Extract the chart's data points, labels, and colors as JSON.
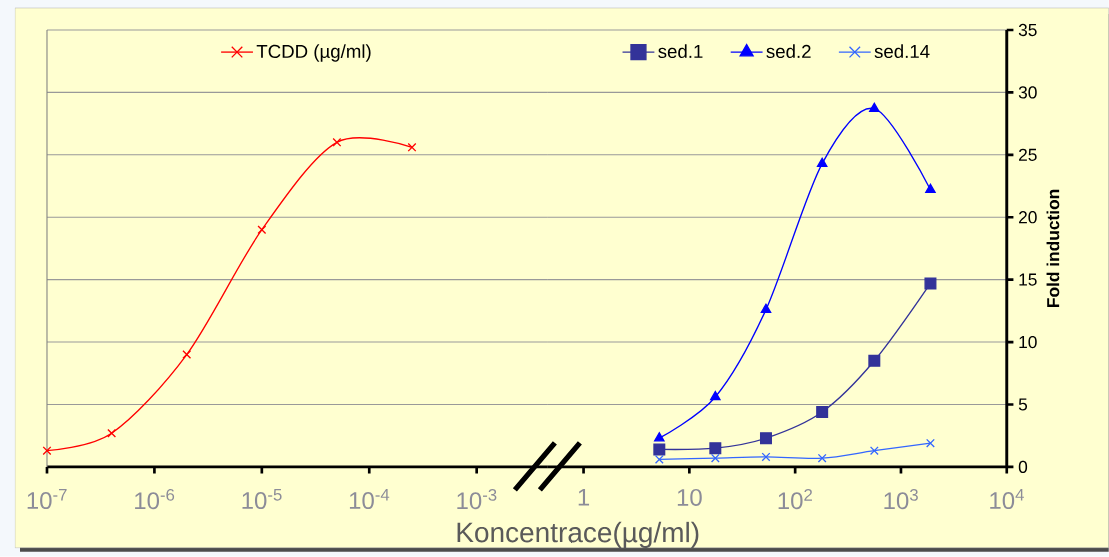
{
  "chart_data": [
    {
      "type": "line",
      "log": "x",
      "grid": "y",
      "legend": "top",
      "tick_labels": "x",
      "xlim": [
        1e-07,
        0.0046
      ],
      "ylim": [
        0,
        35
      ],
      "yticks": [
        0,
        5,
        10,
        15,
        20,
        25,
        30,
        35
      ],
      "xticks": [
        {
          "value": 1e-07,
          "label": "10$^{-7}$"
        },
        {
          "value": 1e-06,
          "label": "10$^{-6}$"
        },
        {
          "value": 1e-05,
          "label": "10$^{-5}$"
        },
        {
          "value": 0.0001,
          "label": "10$^{-4}$"
        },
        {
          "value": 0.001,
          "label": "10$^{-3}$"
        }
      ],
      "series": [
        {
          "name": "TCDD (µg/ml)",
          "color": "#ff0000",
          "marker": "cross",
          "x": [
            1e-07,
            4e-07,
            2e-06,
            1e-05,
            5e-05,
            0.00025
          ],
          "values": [
            1.3,
            2.7,
            9,
            19,
            26,
            25.6
          ]
        }
      ]
    },
    {
      "type": "line",
      "log": "x",
      "grid": "y",
      "legend": "top",
      "xlabel": "Koncentrace(µg/ml)",
      "ylabel": "Fold induction",
      "xlim": [
        0.46,
        10000
      ],
      "ylim": [
        0,
        35
      ],
      "yticks": [
        0,
        5,
        10,
        15,
        20,
        25,
        30,
        35
      ],
      "xticks": [
        1,
        10,
        {
          "value": 100,
          "label": "10$^{2}$"
        },
        {
          "value": 1000,
          "label": "10$^{3}$"
        },
        {
          "value": 10000,
          "label": "10$^{4}$"
        }
      ],
      "series": [
        {
          "name": "sed.1",
          "color": "#333399",
          "marker": "square",
          "x": [
            5.2,
            17.6,
            53,
            180,
            560,
            1900
          ],
          "values": [
            1.4,
            1.5,
            2.3,
            4.4,
            8.5,
            14.7
          ]
        },
        {
          "name": "sed.2",
          "color": "#0000ff",
          "marker": "triangle",
          "x": [
            5.2,
            17.6,
            53,
            180,
            560,
            1900
          ],
          "values": [
            2.3,
            5.6,
            12.6,
            24.3,
            28.7,
            22.2
          ]
        },
        {
          "name": "sed.14",
          "color": "#3366ff",
          "marker": "cross",
          "x": [
            5.2,
            17.6,
            53,
            180,
            560,
            1900
          ],
          "values": [
            0.6,
            0.7,
            0.8,
            0.7,
            1.3,
            1.9
          ]
        }
      ]
    }
  ]
}
